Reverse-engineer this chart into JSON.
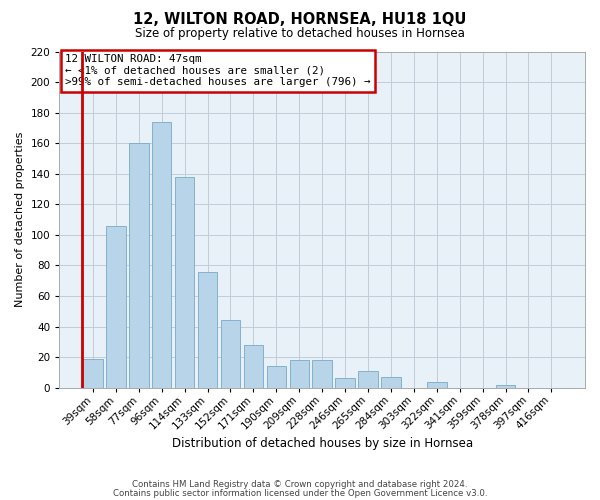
{
  "title": "12, WILTON ROAD, HORNSEA, HU18 1QU",
  "subtitle": "Size of property relative to detached houses in Hornsea",
  "xlabel": "Distribution of detached houses by size in Hornsea",
  "ylabel": "Number of detached properties",
  "bar_labels": [
    "39sqm",
    "58sqm",
    "77sqm",
    "96sqm",
    "114sqm",
    "133sqm",
    "152sqm",
    "171sqm",
    "190sqm",
    "209sqm",
    "228sqm",
    "246sqm",
    "265sqm",
    "284sqm",
    "303sqm",
    "322sqm",
    "341sqm",
    "359sqm",
    "378sqm",
    "397sqm",
    "416sqm"
  ],
  "bar_values": [
    19,
    106,
    160,
    174,
    138,
    76,
    44,
    28,
    14,
    18,
    18,
    6,
    11,
    7,
    0,
    4,
    0,
    0,
    2,
    0,
    0
  ],
  "bar_color": "#b8d4e8",
  "bar_edge_color": "#7aaac8",
  "highlight_line_color": "#cc0000",
  "ylim": [
    0,
    220
  ],
  "yticks": [
    0,
    20,
    40,
    60,
    80,
    100,
    120,
    140,
    160,
    180,
    200,
    220
  ],
  "annotation_title": "12 WILTON ROAD: 47sqm",
  "annotation_line1": "← <1% of detached houses are smaller (2)",
  "annotation_line2": ">99% of semi-detached houses are larger (796) →",
  "annotation_box_color": "#ffffff",
  "annotation_box_edge": "#cc0000",
  "footer_line1": "Contains HM Land Registry data © Crown copyright and database right 2024.",
  "footer_line2": "Contains public sector information licensed under the Open Government Licence v3.0.",
  "background_color": "#ffffff",
  "plot_bg_color": "#e8f0f8",
  "grid_color": "#c0ccd8"
}
